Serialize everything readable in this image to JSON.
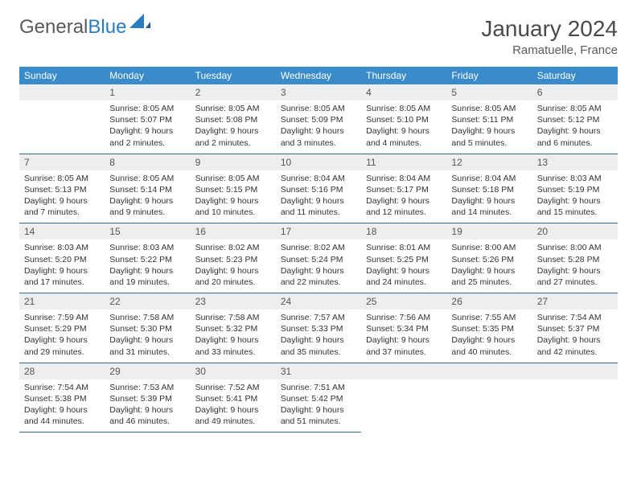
{
  "brand": {
    "part1": "General",
    "part2": "Blue"
  },
  "title": "January 2024",
  "location": "Ramatuelle, France",
  "colors": {
    "header_bg": "#3a8bc9",
    "header_text": "#ffffff",
    "daynum_bg": "#eceeef",
    "row_border": "#3a6a8f",
    "brand_gray": "#5a5a5a",
    "brand_blue": "#2b7bbf"
  },
  "weekdays": [
    "Sunday",
    "Monday",
    "Tuesday",
    "Wednesday",
    "Thursday",
    "Friday",
    "Saturday"
  ],
  "start_offset": 1,
  "days": [
    {
      "n": "1",
      "sunrise": "8:05 AM",
      "sunset": "5:07 PM",
      "daylight": "9 hours and 2 minutes."
    },
    {
      "n": "2",
      "sunrise": "8:05 AM",
      "sunset": "5:08 PM",
      "daylight": "9 hours and 2 minutes."
    },
    {
      "n": "3",
      "sunrise": "8:05 AM",
      "sunset": "5:09 PM",
      "daylight": "9 hours and 3 minutes."
    },
    {
      "n": "4",
      "sunrise": "8:05 AM",
      "sunset": "5:10 PM",
      "daylight": "9 hours and 4 minutes."
    },
    {
      "n": "5",
      "sunrise": "8:05 AM",
      "sunset": "5:11 PM",
      "daylight": "9 hours and 5 minutes."
    },
    {
      "n": "6",
      "sunrise": "8:05 AM",
      "sunset": "5:12 PM",
      "daylight": "9 hours and 6 minutes."
    },
    {
      "n": "7",
      "sunrise": "8:05 AM",
      "sunset": "5:13 PM",
      "daylight": "9 hours and 7 minutes."
    },
    {
      "n": "8",
      "sunrise": "8:05 AM",
      "sunset": "5:14 PM",
      "daylight": "9 hours and 9 minutes."
    },
    {
      "n": "9",
      "sunrise": "8:05 AM",
      "sunset": "5:15 PM",
      "daylight": "9 hours and 10 minutes."
    },
    {
      "n": "10",
      "sunrise": "8:04 AM",
      "sunset": "5:16 PM",
      "daylight": "9 hours and 11 minutes."
    },
    {
      "n": "11",
      "sunrise": "8:04 AM",
      "sunset": "5:17 PM",
      "daylight": "9 hours and 12 minutes."
    },
    {
      "n": "12",
      "sunrise": "8:04 AM",
      "sunset": "5:18 PM",
      "daylight": "9 hours and 14 minutes."
    },
    {
      "n": "13",
      "sunrise": "8:03 AM",
      "sunset": "5:19 PM",
      "daylight": "9 hours and 15 minutes."
    },
    {
      "n": "14",
      "sunrise": "8:03 AM",
      "sunset": "5:20 PM",
      "daylight": "9 hours and 17 minutes."
    },
    {
      "n": "15",
      "sunrise": "8:03 AM",
      "sunset": "5:22 PM",
      "daylight": "9 hours and 19 minutes."
    },
    {
      "n": "16",
      "sunrise": "8:02 AM",
      "sunset": "5:23 PM",
      "daylight": "9 hours and 20 minutes."
    },
    {
      "n": "17",
      "sunrise": "8:02 AM",
      "sunset": "5:24 PM",
      "daylight": "9 hours and 22 minutes."
    },
    {
      "n": "18",
      "sunrise": "8:01 AM",
      "sunset": "5:25 PM",
      "daylight": "9 hours and 24 minutes."
    },
    {
      "n": "19",
      "sunrise": "8:00 AM",
      "sunset": "5:26 PM",
      "daylight": "9 hours and 25 minutes."
    },
    {
      "n": "20",
      "sunrise": "8:00 AM",
      "sunset": "5:28 PM",
      "daylight": "9 hours and 27 minutes."
    },
    {
      "n": "21",
      "sunrise": "7:59 AM",
      "sunset": "5:29 PM",
      "daylight": "9 hours and 29 minutes."
    },
    {
      "n": "22",
      "sunrise": "7:58 AM",
      "sunset": "5:30 PM",
      "daylight": "9 hours and 31 minutes."
    },
    {
      "n": "23",
      "sunrise": "7:58 AM",
      "sunset": "5:32 PM",
      "daylight": "9 hours and 33 minutes."
    },
    {
      "n": "24",
      "sunrise": "7:57 AM",
      "sunset": "5:33 PM",
      "daylight": "9 hours and 35 minutes."
    },
    {
      "n": "25",
      "sunrise": "7:56 AM",
      "sunset": "5:34 PM",
      "daylight": "9 hours and 37 minutes."
    },
    {
      "n": "26",
      "sunrise": "7:55 AM",
      "sunset": "5:35 PM",
      "daylight": "9 hours and 40 minutes."
    },
    {
      "n": "27",
      "sunrise": "7:54 AM",
      "sunset": "5:37 PM",
      "daylight": "9 hours and 42 minutes."
    },
    {
      "n": "28",
      "sunrise": "7:54 AM",
      "sunset": "5:38 PM",
      "daylight": "9 hours and 44 minutes."
    },
    {
      "n": "29",
      "sunrise": "7:53 AM",
      "sunset": "5:39 PM",
      "daylight": "9 hours and 46 minutes."
    },
    {
      "n": "30",
      "sunrise": "7:52 AM",
      "sunset": "5:41 PM",
      "daylight": "9 hours and 49 minutes."
    },
    {
      "n": "31",
      "sunrise": "7:51 AM",
      "sunset": "5:42 PM",
      "daylight": "9 hours and 51 minutes."
    }
  ],
  "labels": {
    "sunrise": "Sunrise:",
    "sunset": "Sunset:",
    "daylight": "Daylight:"
  }
}
